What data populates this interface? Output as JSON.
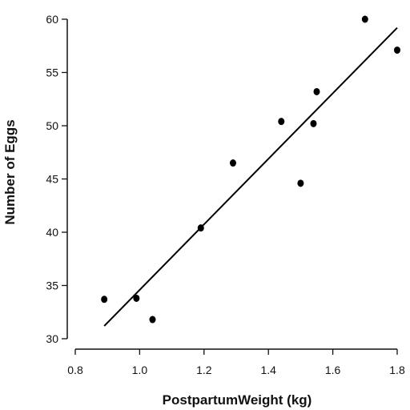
{
  "chart_data": {
    "type": "scatter",
    "title": "",
    "xlabel": "PostpartumWeight (kg)",
    "ylabel": "Number of Eggs",
    "xlim": [
      0.8,
      1.8
    ],
    "ylim": [
      30,
      60
    ],
    "xticks": [
      0.8,
      1.0,
      1.2,
      1.4,
      1.6,
      1.8
    ],
    "xtick_labels": [
      "0.8",
      "1.0",
      "1.2",
      "1.4",
      "1.6",
      "1.8"
    ],
    "yticks": [
      30,
      35,
      40,
      45,
      50,
      55,
      60
    ],
    "ytick_labels": [
      "30",
      "35",
      "40",
      "45",
      "50",
      "55",
      "60"
    ],
    "grid": false,
    "series": [
      {
        "points": [
          {
            "x": 0.89,
            "y": 33.7
          },
          {
            "x": 0.99,
            "y": 33.8
          },
          {
            "x": 1.04,
            "y": 31.8
          },
          {
            "x": 1.19,
            "y": 40.4
          },
          {
            "x": 1.29,
            "y": 46.5
          },
          {
            "x": 1.44,
            "y": 50.4
          },
          {
            "x": 1.5,
            "y": 44.6
          },
          {
            "x": 1.54,
            "y": 50.2
          },
          {
            "x": 1.55,
            "y": 53.2
          },
          {
            "x": 1.7,
            "y": 60.0
          },
          {
            "x": 1.8,
            "y": 57.1
          }
        ]
      }
    ],
    "fit_line": {
      "x1": 0.89,
      "y1": 31.2,
      "x2": 1.8,
      "y2": 59.2
    }
  }
}
